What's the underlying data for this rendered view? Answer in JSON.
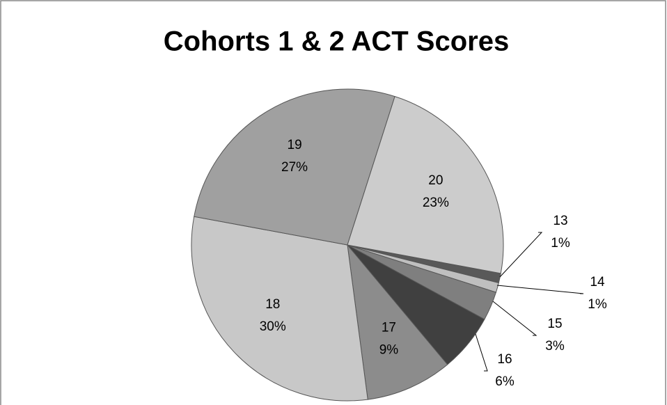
{
  "chart_data": {
    "type": "pie",
    "title": "Cohorts 1 & 2 ACT Scores",
    "categories": [
      "13",
      "14",
      "15",
      "16",
      "17",
      "18",
      "19",
      "20"
    ],
    "values": [
      1,
      1,
      3,
      6,
      9,
      30,
      27,
      23
    ],
    "value_labels": [
      "1%",
      "1%",
      "3%",
      "6%",
      "9%",
      "30%",
      "27%",
      "23%"
    ],
    "colors": [
      "#595959",
      "#bfbfbf",
      "#7f7f7f",
      "#404040",
      "#8c8c8c",
      "#c8c8c8",
      "#a0a0a0",
      "#cccccc"
    ]
  }
}
